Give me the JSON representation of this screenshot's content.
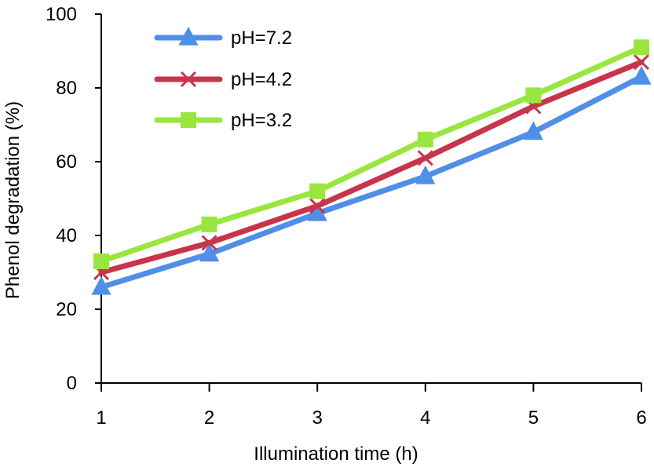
{
  "chart_data": {
    "type": "line",
    "title": "",
    "xlabel": "Illumination time (h)",
    "ylabel": "Phenol degradation (%)",
    "x": [
      1,
      2,
      3,
      4,
      5,
      6
    ],
    "x_tick_labels": [
      "1",
      "2",
      "3",
      "4",
      "5",
      "6"
    ],
    "xlim": [
      1,
      6
    ],
    "ylim": [
      0,
      100
    ],
    "y_ticks": [
      0,
      20,
      40,
      60,
      80,
      100
    ],
    "y_tick_labels": [
      "0",
      "20",
      "40",
      "60",
      "80",
      "100"
    ],
    "grid": false,
    "legend_position": "top-left",
    "series": [
      {
        "name": "pH=7.2",
        "color": "#4f8fe8",
        "marker": "triangle",
        "values": [
          26,
          35,
          46,
          56,
          68,
          83
        ]
      },
      {
        "name": "pH=4.2",
        "color": "#c8344b",
        "marker": "x",
        "values": [
          30,
          38,
          48,
          61,
          75,
          87
        ]
      },
      {
        "name": "pH=3.2",
        "color": "#99e63f",
        "marker": "square",
        "values": [
          33,
          43,
          52,
          66,
          78,
          91
        ]
      }
    ]
  }
}
